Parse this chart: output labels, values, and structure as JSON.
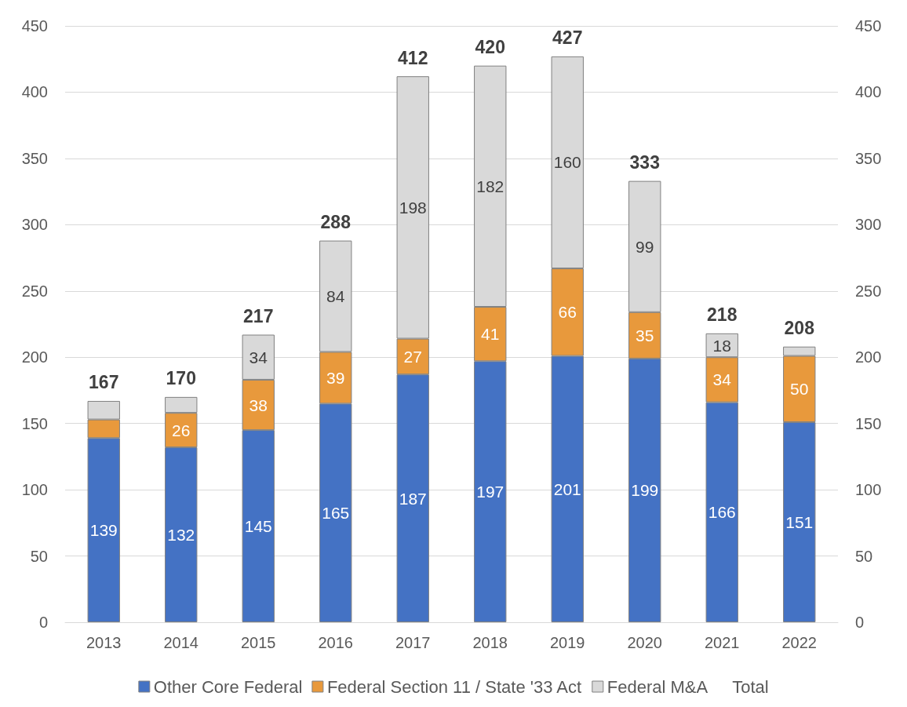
{
  "chart_data": {
    "type": "bar",
    "stacked": true,
    "categories": [
      "2013",
      "2014",
      "2015",
      "2016",
      "2017",
      "2018",
      "2019",
      "2020",
      "2021",
      "2022"
    ],
    "series": [
      {
        "name": "Other Core Federal",
        "color": "#4472c4",
        "values": [
          139,
          132,
          145,
          165,
          187,
          197,
          201,
          199,
          166,
          151
        ],
        "value_labels": [
          "139",
          "132",
          "145",
          "165",
          "187",
          "197",
          "201",
          "199",
          "166",
          "151"
        ]
      },
      {
        "name": "Federal Section 11 / State '33 Act",
        "color": "#e8993c",
        "values": [
          14,
          26,
          38,
          39,
          27,
          41,
          66,
          35,
          34,
          50
        ],
        "value_labels": [
          null,
          "26",
          "38",
          "39",
          "27",
          "41",
          "66",
          "35",
          "34",
          "50"
        ]
      },
      {
        "name": "Federal M&A",
        "color": "#d9d9d9",
        "values": [
          14,
          12,
          34,
          84,
          198,
          182,
          160,
          99,
          18,
          7
        ],
        "value_labels": [
          null,
          null,
          "34",
          "84",
          "198",
          "182",
          "160",
          "99",
          "18",
          null
        ]
      },
      {
        "name": "Total",
        "type": "line",
        "line_style": "none",
        "marker": "none",
        "values": [
          null,
          null,
          null,
          null,
          null,
          null,
          null,
          null,
          null,
          null
        ]
      }
    ],
    "totals": [
      "167",
      "170",
      "217",
      "288",
      "412",
      "420",
      "427",
      "333",
      "218",
      "208"
    ],
    "ylim": [
      0,
      450
    ],
    "yticks": [
      0,
      50,
      100,
      150,
      200,
      250,
      300,
      350,
      400,
      450
    ],
    "y2lim": [
      0,
      450
    ],
    "y2ticks": [
      0,
      50,
      100,
      150,
      200,
      250,
      300,
      350,
      400,
      450
    ],
    "grid": "y",
    "legend": "bottom"
  }
}
